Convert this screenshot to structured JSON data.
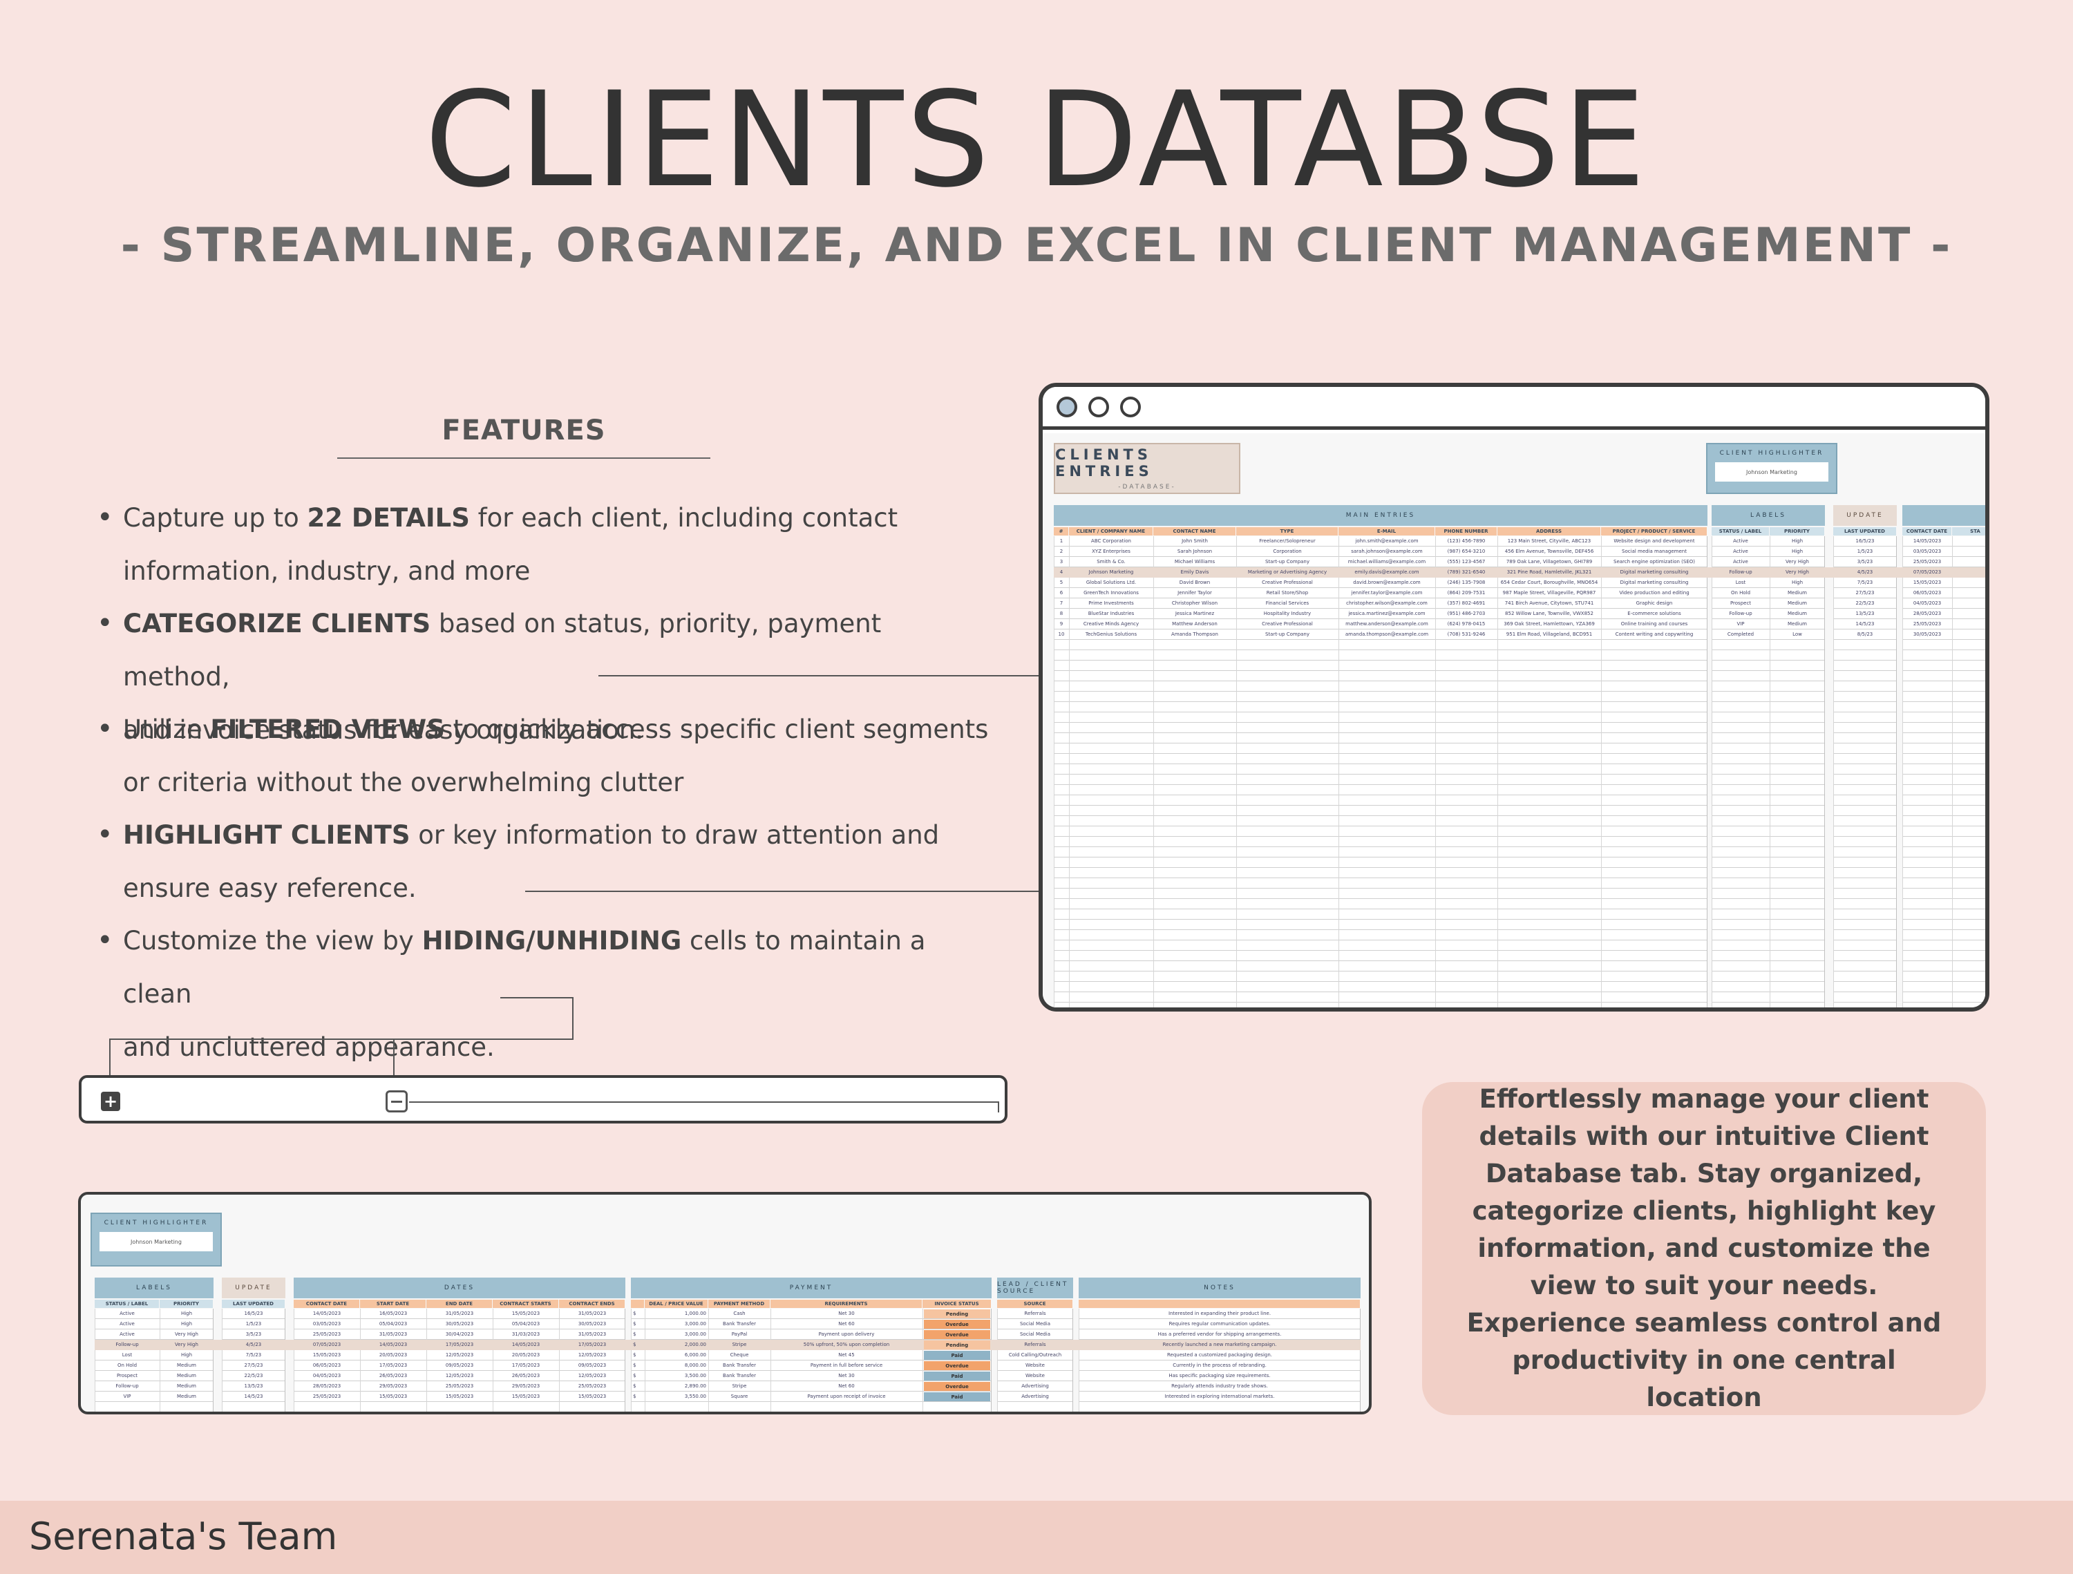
{
  "header": {
    "title": "CLIENTS DATABSE",
    "subtitle": "- STREAMLINE, ORGANIZE, AND EXCEL IN CLIENT MANAGEMENT -"
  },
  "features": {
    "heading": "FEATURES",
    "items": [
      {
        "pre": "Capture up to ",
        "bold": "22 DETAILS",
        "post": " for each client, including contact",
        "line2": "information, industry, and more"
      },
      {
        "pre": "",
        "bold": "CATEGORIZE CLIENTS",
        "post": " based on status, priority, payment method,",
        "line2": "and invoice status for easy organization."
      },
      {
        "pre": "Utilize ",
        "bold": "FILTERED VIEWS",
        "post": " to quickly access specific client segments",
        "line2": "or criteria without the overwhelming clutter"
      },
      {
        "pre": "",
        "bold": "HIGHLIGHT CLIENTS",
        "post": " or key information to draw attention and",
        "line2": "ensure easy reference."
      },
      {
        "pre": "Customize the view by ",
        "bold": "HIDING/UNHIDING",
        "post": " cells to maintain a clean",
        "line2": "and uncluttered appearance."
      }
    ]
  },
  "browser": {
    "sheet_title": "CLIENTS ENTRIES",
    "sheet_subtitle": "-DATABASE-",
    "highlighter_label": "CLIENT HIGHLIGHTER",
    "highlighter_value": "Johnson Marketing",
    "sections": {
      "main": "MAIN ENTRIES",
      "labels": "LABELS",
      "update": "UPDATE"
    },
    "columns": [
      "#",
      "CLIENT / COMPANY NAME",
      "CONTACT NAME",
      "TYPE",
      "E-MAIL",
      "PHONE NUMBER",
      "ADDRESS",
      "PROJECT / PRODUCT / SERVICE"
    ],
    "label_columns": [
      "STATUS / LABEL",
      "PRIORITY"
    ],
    "update_columns": [
      "LAST UPDATED"
    ],
    "extra_columns": [
      "CONTACT DATE",
      "STA"
    ],
    "rows": [
      [
        "1",
        "ABC Corporation",
        "John Smith",
        "Freelancer/Solopreneur",
        "john.smith@example.com",
        "(123) 456-7890",
        "123 Main Street, Cityville, ABC123",
        "Website design and development",
        "Active",
        "High",
        "16/5/23",
        "14/05/2023"
      ],
      [
        "2",
        "XYZ Enterprises",
        "Sarah Johnson",
        "Corporation",
        "sarah.johnson@example.com",
        "(987) 654-3210",
        "456 Elm Avenue, Townsville, DEF456",
        "Social media management",
        "Active",
        "High",
        "1/5/23",
        "03/05/2023"
      ],
      [
        "3",
        "Smith & Co.",
        "Michael Williams",
        "Start-up Company",
        "michael.williams@example.com",
        "(555) 123-4567",
        "789 Oak Lane, Villagetown, GHI789",
        "Search engine optimization (SEO)",
        "Active",
        "Very High",
        "3/5/23",
        "25/05/2023"
      ],
      [
        "4",
        "Johnson Marketing",
        "Emily Davis",
        "Marketing or Advertising Agency",
        "emily.davis@example.com",
        "(789) 321-6540",
        "321 Pine Road, Hamletville, JKL321",
        "Digital marketing consulting",
        "Follow-up",
        "Very High",
        "4/5/23",
        "07/05/2023"
      ],
      [
        "5",
        "Global Solutions Ltd.",
        "David Brown",
        "Creative Professional",
        "david.brown@example.com",
        "(246) 135-7908",
        "654 Cedar Court, Boroughville, MNO654",
        "Digital marketing consulting",
        "Lost",
        "High",
        "7/5/23",
        "15/05/2023"
      ],
      [
        "6",
        "GreenTech Innovations",
        "Jennifer Taylor",
        "Retail Store/Shop",
        "jennifer.taylor@example.com",
        "(864) 209-7531",
        "987 Maple Street, Villageville, PQR987",
        "Video production and editing",
        "On Hold",
        "Medium",
        "27/5/23",
        "06/05/2023"
      ],
      [
        "7",
        "Prime Investments",
        "Christopher Wilson",
        "Financial Services",
        "christopher.wilson@example.com",
        "(357) 802-4691",
        "741 Birch Avenue, Citytown, STU741",
        "Graphic design",
        "Prospect",
        "Medium",
        "22/5/23",
        "04/05/2023"
      ],
      [
        "8",
        "BlueStar Industries",
        "Jessica Martinez",
        "Hospitality Industry",
        "jessica.martinez@example.com",
        "(951) 486-2703",
        "852 Willow Lane, Townville, VWX852",
        "E-commerce solutions",
        "Follow-up",
        "Medium",
        "13/5/23",
        "28/05/2023"
      ],
      [
        "9",
        "Creative Minds Agency",
        "Matthew Anderson",
        "Creative Professional",
        "matthew.anderson@example.com",
        "(624) 978-0415",
        "369 Oak Street, Hamlettown, YZA369",
        "Online training and courses",
        "VIP",
        "Medium",
        "14/5/23",
        "25/05/2023"
      ],
      [
        "10",
        "TechGenius Solutions",
        "Amanda Thompson",
        "Start-up Company",
        "amanda.thompson@example.com",
        "(708) 531-9246",
        "951 Elm Road, Villageland, BCD951",
        "Content writing and copywriting",
        "Completed",
        "Low",
        "8/5/23",
        "30/05/2023"
      ]
    ]
  },
  "sheet2": {
    "highlighter_label": "CLIENT HIGHLIGHTER",
    "highlighter_value": "Johnson Marketing",
    "sections": {
      "labels": "LABELS",
      "update": "UPDATE",
      "dates": "DATES",
      "payment": "PAYMENT",
      "lead": "LEAD / CLIENT SOURCE",
      "notes": "NOTES"
    },
    "columns": {
      "labels": [
        "STATUS / LABEL",
        "PRIORITY"
      ],
      "update": [
        "LAST UPDATED"
      ],
      "dates": [
        "CONTACT DATE",
        "START DATE",
        "END DATE",
        "CONTRACT STARTS",
        "CONTRACT ENDS"
      ],
      "payment": [
        "DEAL / PRICE VALUE",
        "PAYMENT METHOD",
        "REQUIREMENTS",
        "INVOICE STATUS"
      ],
      "lead": [
        "SOURCE"
      ],
      "notes": [
        ""
      ]
    },
    "rows": [
      [
        "Active",
        "High",
        "16/5/23",
        "14/05/2023",
        "16/05/2023",
        "31/05/2023",
        "15/05/2023",
        "31/05/2023",
        "$",
        "1,000.00",
        "Cash",
        "Net 30",
        "Pending",
        "Referrals",
        "Interested in expanding their product line."
      ],
      [
        "Active",
        "High",
        "1/5/23",
        "03/05/2023",
        "05/04/2023",
        "30/05/2023",
        "05/04/2023",
        "30/05/2023",
        "$",
        "3,000.00",
        "Bank Transfer",
        "Net 60",
        "Overdue",
        "Social Media",
        "Requires regular communication updates."
      ],
      [
        "Active",
        "Very High",
        "3/5/23",
        "25/05/2023",
        "31/05/2023",
        "30/04/2023",
        "31/03/2023",
        "31/05/2023",
        "$",
        "3,000.00",
        "PayPal",
        "Payment upon delivery",
        "Overdue",
        "Social Media",
        "Has a preferred vendor for shipping arrangements."
      ],
      [
        "Follow-up",
        "Very High",
        "4/5/23",
        "07/05/2023",
        "14/05/2023",
        "17/05/2023",
        "14/05/2023",
        "17/05/2023",
        "$",
        "2,000.00",
        "Stripe",
        "50% upfront, 50% upon completion",
        "Pending",
        "Referrals",
        "Recently launched a new marketing campaign."
      ],
      [
        "Lost",
        "High",
        "7/5/23",
        "15/05/2023",
        "20/05/2023",
        "12/05/2023",
        "20/05/2023",
        "12/05/2023",
        "$",
        "6,000.00",
        "Cheque",
        "Net 45",
        "Paid",
        "Cold Calling/Outreach",
        "Requested a customized packaging design."
      ],
      [
        "On Hold",
        "Medium",
        "27/5/23",
        "06/05/2023",
        "17/05/2023",
        "09/05/2023",
        "17/05/2023",
        "09/05/2023",
        "$",
        "8,000.00",
        "Bank Transfer",
        "Payment in full before service",
        "Overdue",
        "Website",
        "Currently in the process of rebranding."
      ],
      [
        "Prospect",
        "Medium",
        "22/5/23",
        "04/05/2023",
        "26/05/2023",
        "12/05/2023",
        "26/05/2023",
        "12/05/2023",
        "$",
        "3,500.00",
        "Bank Transfer",
        "Net 30",
        "Paid",
        "Website",
        "Has specific packaging size requirements."
      ],
      [
        "Follow-up",
        "Medium",
        "13/5/23",
        "28/05/2023",
        "29/05/2023",
        "25/05/2023",
        "29/05/2023",
        "25/05/2023",
        "$",
        "2,890.00",
        "Stripe",
        "Net 60",
        "Overdue",
        "Advertising",
        "Regularly attends industry trade shows."
      ],
      [
        "VIP",
        "Medium",
        "14/5/23",
        "25/05/2023",
        "15/05/2023",
        "15/05/2023",
        "15/05/2023",
        "15/05/2023",
        "$",
        "3,550.00",
        "Square",
        "Payment upon receipt of invoice",
        "Paid",
        "Advertising",
        "Interested in exploring international markets."
      ]
    ]
  },
  "description": "Effortlessly manage your client details with our intuitive Client Database tab. Stay organized, categorize clients, highlight key information, and customize the view to suit your needs. Experience seamless control and productivity in one central location",
  "footer": "Serenata's Team",
  "colors": {
    "background": "#f9e4e1",
    "accent_blue": "#9fc0d0",
    "accent_orange": "#f6c4a0",
    "pending": "#f6c4a0",
    "overdue": "#f2a36b",
    "paid": "#8fb3c6"
  }
}
